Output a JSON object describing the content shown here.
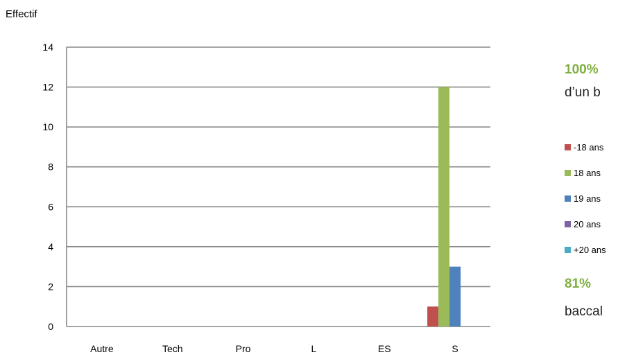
{
  "chart_data": {
    "type": "bar",
    "ylabel": "Effectif",
    "xlabel": "",
    "ylim": [
      0,
      14
    ],
    "yticks": [
      0,
      2,
      4,
      6,
      8,
      10,
      12,
      14
    ],
    "grid": true,
    "legend_position": "right",
    "categories": [
      "Autre",
      "Tech",
      "Pro",
      "L",
      "ES",
      "S"
    ],
    "series": [
      {
        "name": "-18 ans",
        "color": "#c0504d",
        "values": [
          0,
          0,
          0,
          0,
          0,
          1
        ]
      },
      {
        "name": "18 ans",
        "color": "#9bbb59",
        "values": [
          0,
          0,
          0,
          0,
          0,
          12
        ]
      },
      {
        "name": "19 ans",
        "color": "#4f81bd",
        "values": [
          0,
          0,
          0,
          0,
          0,
          3
        ]
      },
      {
        "name": "20 ans",
        "color": "#8064a2",
        "values": [
          0,
          0,
          0,
          0,
          0,
          0
        ]
      },
      {
        "name": "+20 ans",
        "color": "#4bacc6",
        "values": [
          0,
          0,
          0,
          0,
          0,
          0
        ]
      }
    ]
  },
  "callouts": {
    "top_pct": "100%",
    "top_text": "d’un b",
    "bottom_pct": "81%",
    "bottom_text": "baccal"
  }
}
